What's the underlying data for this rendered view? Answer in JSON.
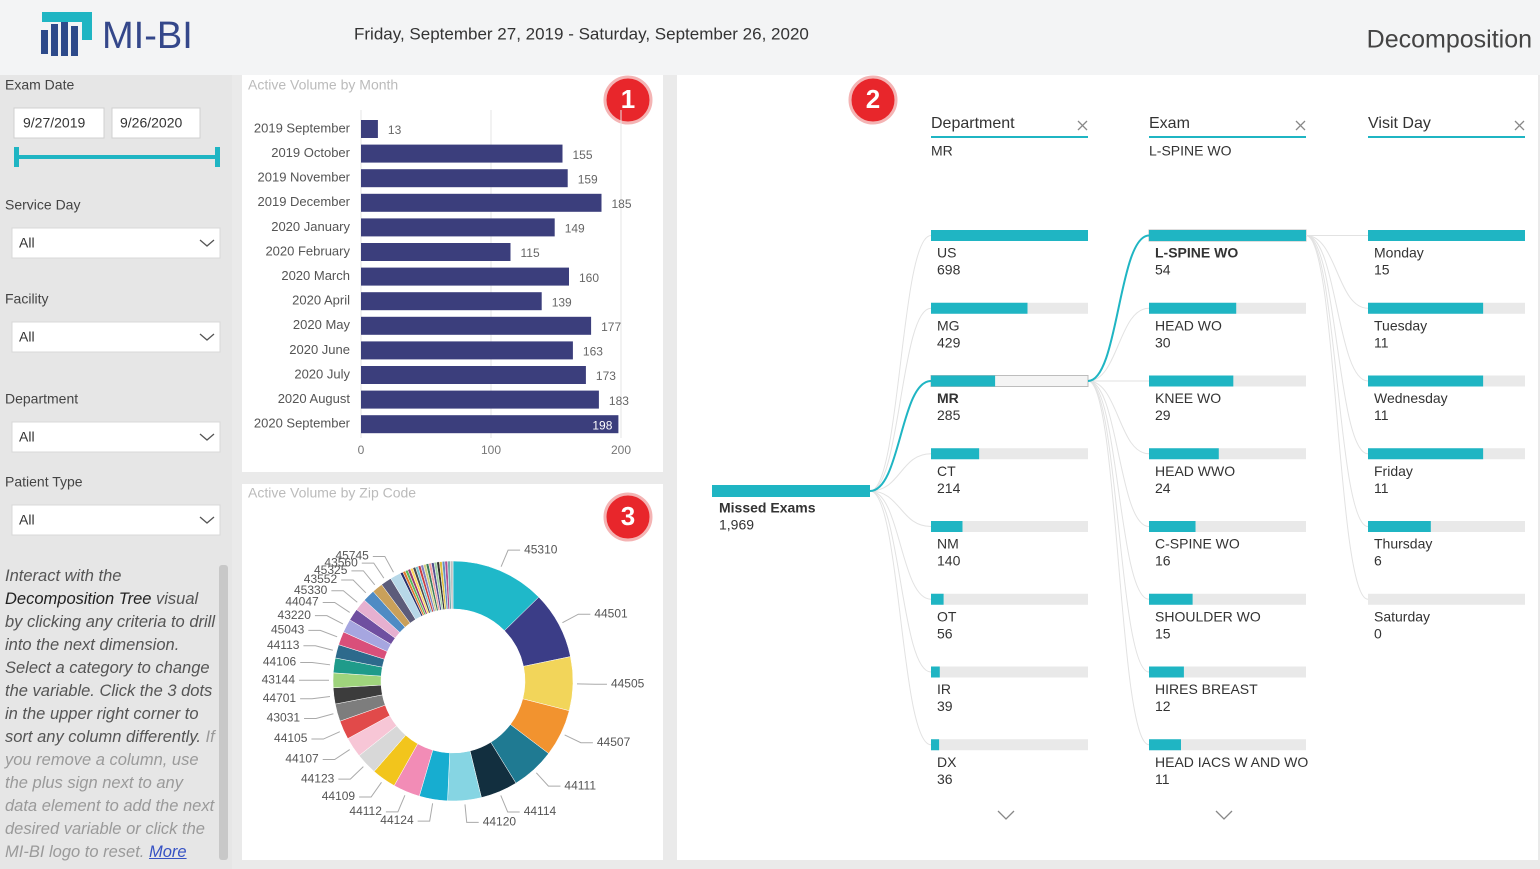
{
  "header": {
    "logo": "MI-BI",
    "date_range": "Friday, September 27, 2019 - Saturday, September 26, 2020",
    "page_title": "Decomposition"
  },
  "filters": {
    "exam_date": {
      "label": "Exam Date",
      "start": "9/27/2019",
      "end": "9/26/2020"
    },
    "dropdowns": [
      {
        "label": "Service Day",
        "value": "All"
      },
      {
        "label": "Facility",
        "value": "All"
      },
      {
        "label": "Department",
        "value": "All"
      },
      {
        "label": "Patient Type",
        "value": "All"
      }
    ]
  },
  "help": {
    "intro": "Interact with the ",
    "emphasis": "Decomposition Tree",
    "body": " visual by clicking any criteria to drill into the next dimension. Select a category to change the variable. Click the 3 dots in the upper right corner to sort any column differently. ",
    "faded": "If you remove a column, use the plus sign next to any data element to add the next desired variable or click the MI-BI logo to reset. ",
    "link": "More"
  },
  "badges": [
    "1",
    "2",
    "3"
  ],
  "chart_data": [
    {
      "type": "bar",
      "orientation": "horizontal",
      "title": "Active Volume by Month",
      "categories": [
        "2019 September",
        "2019 October",
        "2019 November",
        "2019 December",
        "2020 January",
        "2020 February",
        "2020 March",
        "2020 April",
        "2020 May",
        "2020 June",
        "2020 July",
        "2020 August",
        "2020 September"
      ],
      "values": [
        13,
        155,
        159,
        185,
        149,
        115,
        160,
        139,
        177,
        163,
        173,
        183,
        198
      ],
      "color": "#3b3e7c",
      "xlim": [
        0,
        200
      ],
      "xticks": [
        0,
        100,
        200
      ],
      "grid": true
    },
    {
      "type": "pie",
      "donut": true,
      "title": "Active Volume by Zip Code",
      "categories": [
        "45310",
        "44501",
        "44505",
        "44507",
        "44111",
        "44114",
        "44120",
        "44124",
        "44112",
        "44109",
        "44123",
        "44107",
        "44105",
        "43031",
        "44701",
        "43144",
        "44106",
        "44113",
        "45043",
        "43220",
        "44047",
        "45330",
        "43552",
        "45325",
        "43560",
        "45745",
        null,
        null,
        null,
        null,
        null,
        null,
        null,
        null,
        null,
        null,
        null,
        null,
        null,
        null,
        null,
        null,
        null,
        null,
        null,
        null
      ],
      "values": [
        140,
        100,
        80,
        70,
        65,
        55,
        50,
        42,
        40,
        36,
        32,
        30,
        28,
        26,
        24,
        22,
        22,
        20,
        20,
        20,
        18,
        18,
        18,
        16,
        16,
        16,
        4,
        4,
        4,
        4,
        4,
        4,
        4,
        4,
        4,
        4,
        4,
        4,
        4,
        4,
        4,
        4,
        4,
        4,
        4,
        4
      ],
      "colors": [
        "#1fb8c9",
        "#3b3d87",
        "#f2d55a",
        "#f2932f",
        "#1f7a92",
        "#122f3f",
        "#86d5e3",
        "#17add0",
        "#f28cb6",
        "#f2c51c",
        "#d8d8d8",
        "#f7c6d6",
        "#e14a4a",
        "#7d7d7d",
        "#3c3c3c",
        "#9fd47c",
        "#1f9b8a",
        "#2d6a8c",
        "#d94f7a",
        "#a6a6e0",
        "#6f4fa0",
        "#e6b0d0",
        "#4e8bc4",
        "#c9a05a",
        "#5c5c7a",
        "#b7d8e8",
        "#2a2f6a",
        "#e07a30",
        "#5cb85c",
        "#9a3b6e",
        "#ffd75e",
        "#4a4a4a",
        "#79c2d0",
        "#c94040",
        "#8080c0",
        "#d0d080",
        "#3a7a5a",
        "#f0a0a0",
        "#505090",
        "#a0d0a0",
        "#303030",
        "#e0c040",
        "#6090c0",
        "#b05090",
        "#70b0b0",
        "#c0c0c0"
      ]
    }
  ],
  "decomposition_tree": {
    "color": "#1fb5c3",
    "root": {
      "label": "Missed Exams",
      "value": 1969,
      "value_label": "1,969"
    },
    "columns": [
      {
        "header": "Department",
        "selected": "MR",
        "nodes": [
          {
            "label": "US",
            "value": 698
          },
          {
            "label": "MG",
            "value": 429
          },
          {
            "label": "MR",
            "value": 285
          },
          {
            "label": "CT",
            "value": 214
          },
          {
            "label": "NM",
            "value": 140
          },
          {
            "label": "OT",
            "value": 56
          },
          {
            "label": "IR",
            "value": 39
          },
          {
            "label": "DX",
            "value": 36
          }
        ]
      },
      {
        "header": "Exam",
        "selected": "L-SPINE WO",
        "nodes": [
          {
            "label": "L-SPINE WO",
            "value": 54
          },
          {
            "label": "HEAD WO",
            "value": 30
          },
          {
            "label": "KNEE WO",
            "value": 29
          },
          {
            "label": "HEAD WWO",
            "value": 24
          },
          {
            "label": "C-SPINE WO",
            "value": 16
          },
          {
            "label": "SHOULDER WO",
            "value": 15
          },
          {
            "label": "HIRES BREAST",
            "value": 12
          },
          {
            "label": "HEAD IACS W AND WO",
            "value": 11
          }
        ]
      },
      {
        "header": "Visit Day",
        "nodes": [
          {
            "label": "Monday",
            "value": 15
          },
          {
            "label": "Tuesday",
            "value": 11
          },
          {
            "label": "Wednesday",
            "value": 11
          },
          {
            "label": "Friday",
            "value": 11
          },
          {
            "label": "Thursday",
            "value": 6
          },
          {
            "label": "Saturday",
            "value": 0
          }
        ]
      }
    ]
  }
}
